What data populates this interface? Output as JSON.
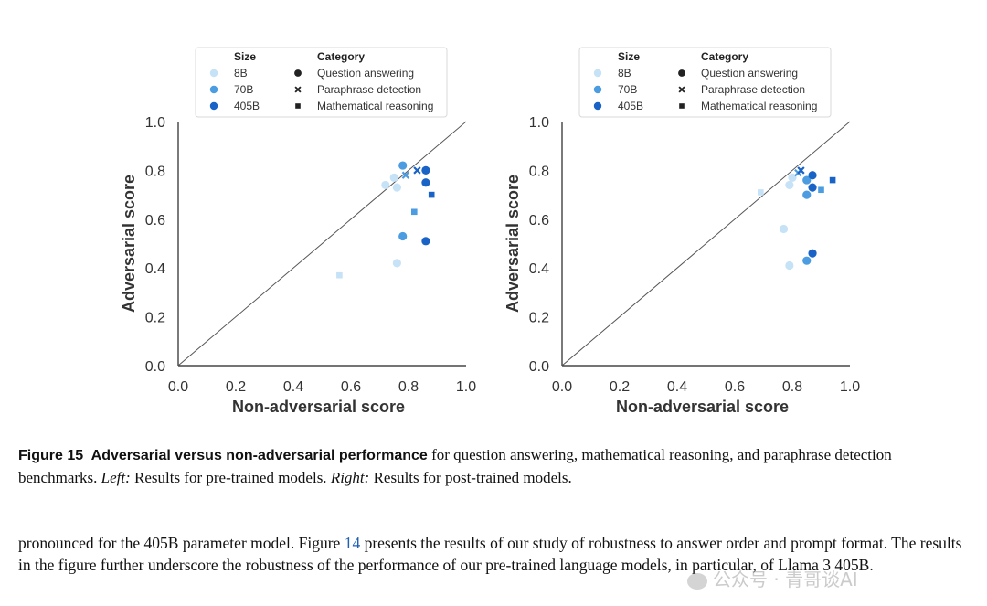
{
  "chart_data": [
    {
      "type": "scatter",
      "panel": "left",
      "xlabel": "Non-adversarial score",
      "ylabel": "Adversarial score",
      "xlim": [
        0.0,
        1.0
      ],
      "ylim": [
        0.0,
        1.0
      ],
      "xticks": [
        "0.0",
        "0.2",
        "0.4",
        "0.6",
        "0.8",
        "1.0"
      ],
      "yticks": [
        "0.0",
        "0.2",
        "0.4",
        "0.6",
        "0.8",
        "1.0"
      ],
      "reference_line": "y = x",
      "legend": {
        "size_title": "Size",
        "category_title": "Category",
        "sizes": [
          "8B",
          "70B",
          "405B"
        ],
        "categories": [
          "Question answering",
          "Paraphrase detection",
          "Mathematical reasoning"
        ]
      },
      "points": [
        {
          "x": 0.56,
          "y": 0.37,
          "size": "8B",
          "category": "Mathematical reasoning"
        },
        {
          "x": 0.76,
          "y": 0.42,
          "size": "8B",
          "category": "Question answering"
        },
        {
          "x": 0.72,
          "y": 0.74,
          "size": "8B",
          "category": "Question answering"
        },
        {
          "x": 0.75,
          "y": 0.77,
          "size": "8B",
          "category": "Question answering"
        },
        {
          "x": 0.76,
          "y": 0.73,
          "size": "8B",
          "category": "Question answering"
        },
        {
          "x": 0.78,
          "y": 0.53,
          "size": "70B",
          "category": "Question answering"
        },
        {
          "x": 0.78,
          "y": 0.82,
          "size": "70B",
          "category": "Question answering"
        },
        {
          "x": 0.79,
          "y": 0.78,
          "size": "70B",
          "category": "Paraphrase detection"
        },
        {
          "x": 0.82,
          "y": 0.63,
          "size": "70B",
          "category": "Mathematical reasoning"
        },
        {
          "x": 0.83,
          "y": 0.8,
          "size": "405B",
          "category": "Paraphrase detection"
        },
        {
          "x": 0.86,
          "y": 0.8,
          "size": "405B",
          "category": "Question answering"
        },
        {
          "x": 0.86,
          "y": 0.75,
          "size": "405B",
          "category": "Question answering"
        },
        {
          "x": 0.86,
          "y": 0.51,
          "size": "405B",
          "category": "Question answering"
        },
        {
          "x": 0.88,
          "y": 0.7,
          "size": "405B",
          "category": "Mathematical reasoning"
        }
      ]
    },
    {
      "type": "scatter",
      "panel": "right",
      "xlabel": "Non-adversarial score",
      "ylabel": "Adversarial score",
      "xlim": [
        0.0,
        1.0
      ],
      "ylim": [
        0.0,
        1.0
      ],
      "xticks": [
        "0.0",
        "0.2",
        "0.4",
        "0.6",
        "0.8",
        "1.0"
      ],
      "yticks": [
        "0.0",
        "0.2",
        "0.4",
        "0.6",
        "0.8",
        "1.0"
      ],
      "reference_line": "y = x",
      "legend": {
        "size_title": "Size",
        "category_title": "Category",
        "sizes": [
          "8B",
          "70B",
          "405B"
        ],
        "categories": [
          "Question answering",
          "Paraphrase detection",
          "Mathematical reasoning"
        ]
      },
      "points": [
        {
          "x": 0.69,
          "y": 0.71,
          "size": "8B",
          "category": "Mathematical reasoning"
        },
        {
          "x": 0.77,
          "y": 0.56,
          "size": "8B",
          "category": "Question answering"
        },
        {
          "x": 0.79,
          "y": 0.41,
          "size": "8B",
          "category": "Question answering"
        },
        {
          "x": 0.79,
          "y": 0.74,
          "size": "8B",
          "category": "Question answering"
        },
        {
          "x": 0.8,
          "y": 0.77,
          "size": "8B",
          "category": "Question answering"
        },
        {
          "x": 0.82,
          "y": 0.79,
          "size": "70B",
          "category": "Paraphrase detection"
        },
        {
          "x": 0.85,
          "y": 0.43,
          "size": "70B",
          "category": "Question answering"
        },
        {
          "x": 0.85,
          "y": 0.7,
          "size": "70B",
          "category": "Question answering"
        },
        {
          "x": 0.85,
          "y": 0.76,
          "size": "70B",
          "category": "Question answering"
        },
        {
          "x": 0.9,
          "y": 0.72,
          "size": "70B",
          "category": "Mathematical reasoning"
        },
        {
          "x": 0.83,
          "y": 0.8,
          "size": "405B",
          "category": "Paraphrase detection"
        },
        {
          "x": 0.87,
          "y": 0.46,
          "size": "405B",
          "category": "Question answering"
        },
        {
          "x": 0.87,
          "y": 0.73,
          "size": "405B",
          "category": "Question answering"
        },
        {
          "x": 0.87,
          "y": 0.78,
          "size": "405B",
          "category": "Question answering"
        },
        {
          "x": 0.94,
          "y": 0.76,
          "size": "405B",
          "category": "Mathematical reasoning"
        }
      ]
    }
  ],
  "colors": {
    "8B": "#c6e2f7",
    "70B": "#4b9ce0",
    "405B": "#1a63c6",
    "legend_marker": "#222222",
    "diagonal": "#555555",
    "axis": "#222222"
  },
  "caption": {
    "label": "Figure 15",
    "title": "Adversarial versus non-adversarial performance",
    "text1": " for question answering, mathematical reasoning, and paraphrase detection benchmarks. ",
    "left_label": "Left:",
    "left_text": " Results for pre-trained models. ",
    "right_label": "Right:",
    "right_text": " Results for post-trained models."
  },
  "body": {
    "part1": "pronounced for the 405B parameter model. Figure ",
    "figure_ref": "14",
    "part2": " presents the results of our study of robustness to answer order and prompt format. The results in the figure further underscore the robustness of the performance of our pre-trained language models, in particular, of Llama 3 405B."
  },
  "watermark": "公众号 · 青哥谈AI"
}
